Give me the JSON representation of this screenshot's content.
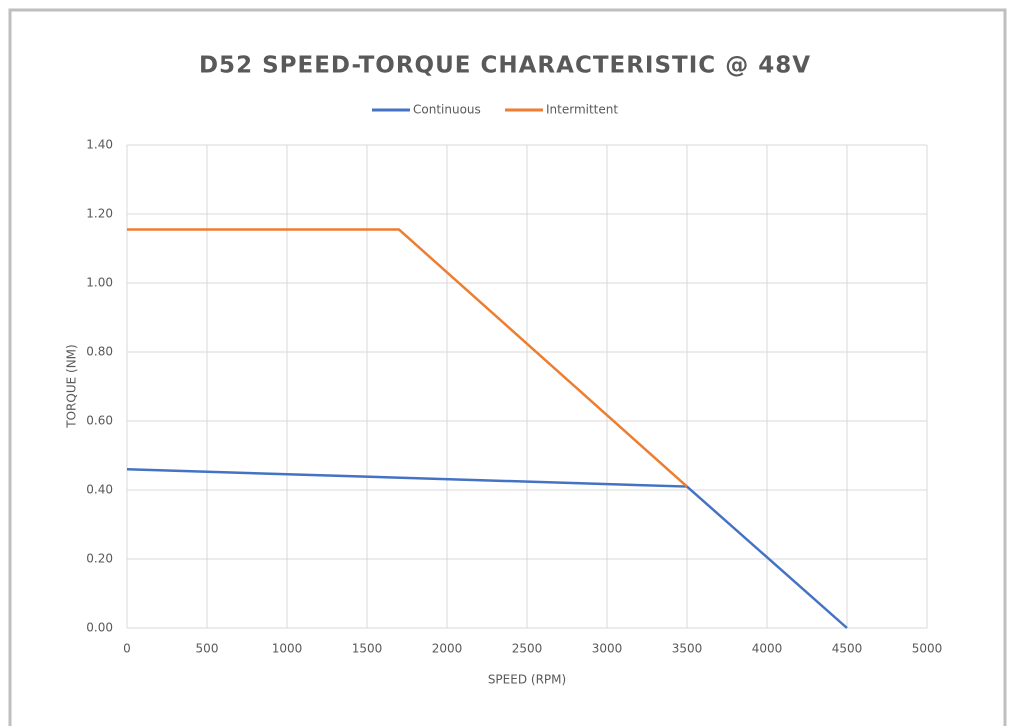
{
  "chart_data": {
    "type": "line",
    "title": "D52 SPEED-TORQUE CHARACTERISTIC @ 48V",
    "x_label": "SPEED (RPM)",
    "y_label": "TORQUE (NM)",
    "series": [
      {
        "name": "Continuous",
        "color": "#4472c4",
        "x": [
          0,
          3500,
          4500
        ],
        "values": [
          0.46,
          0.41,
          0
        ]
      },
      {
        "name": "Intermittent",
        "color": "#ed7d31",
        "x": [
          0,
          1700,
          3500
        ],
        "values": [
          1.155,
          1.155,
          0.41
        ]
      }
    ],
    "xlim": [
      0,
      5000
    ],
    "xticks": [
      0,
      500,
      1000,
      1500,
      2000,
      2500,
      3000,
      3500,
      4000,
      4500,
      5000
    ],
    "ylim": [
      0,
      1.4
    ],
    "yticks": [
      {
        "value": 0,
        "label": "0.00"
      },
      {
        "value": 0.2,
        "label": "0.20"
      },
      {
        "value": 0.4,
        "label": "0.40"
      },
      {
        "value": 0.6,
        "label": "0.60"
      },
      {
        "value": 0.8,
        "label": "0.80"
      },
      {
        "value": 1.0,
        "label": "1.00"
      },
      {
        "value": 1.2,
        "label": "1.20"
      },
      {
        "value": 1.4,
        "label": "1.40"
      }
    ],
    "grid": true,
    "legend": "top"
  }
}
